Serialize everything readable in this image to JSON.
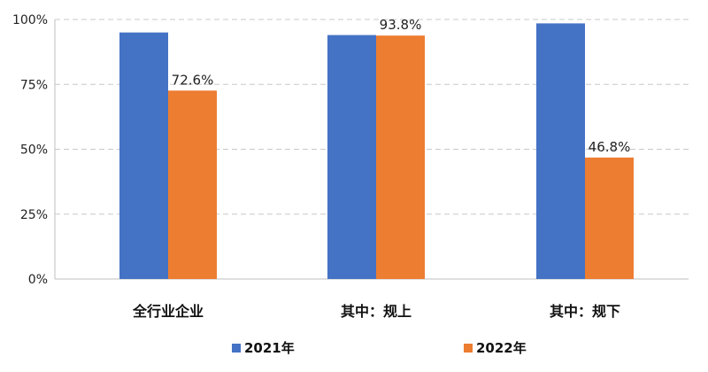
{
  "chart_data": {
    "type": "bar",
    "categories": [
      "全行业企业",
      "其中：规上",
      "其中：规下"
    ],
    "series": [
      {
        "name": "2021年",
        "color": "#4472C4",
        "values": [
          95,
          94,
          98.5
        ],
        "labels": [
          "",
          "",
          ""
        ]
      },
      {
        "name": "2022年",
        "color": "#ED7D31",
        "values": [
          72.6,
          93.8,
          46.8
        ],
        "labels": [
          "72.6%",
          "93.8%",
          "46.8%"
        ]
      }
    ],
    "yticks": [
      "0%",
      "25%",
      "50%",
      "75%",
      "100%"
    ],
    "ylim": [
      0,
      100
    ],
    "grid": true,
    "legend": "bottom"
  }
}
